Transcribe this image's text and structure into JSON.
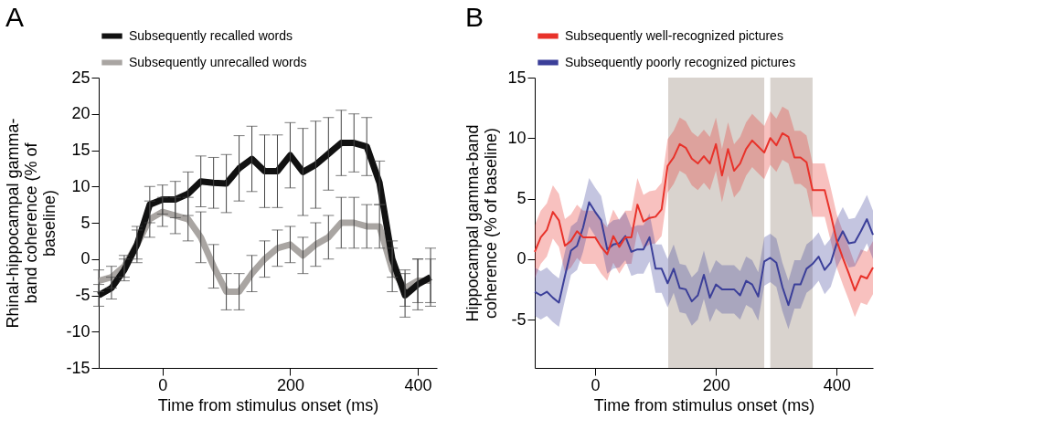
{
  "chart_data": [
    {
      "type": "line",
      "title": "A",
      "xlabel": "Time from stimulus onset (ms)",
      "ylabel": "Rhinal-hippocampal gamma-band coherence (% of baseline)",
      "x": [
        -100,
        -80,
        -60,
        -40,
        -20,
        0,
        20,
        40,
        60,
        80,
        100,
        120,
        140,
        160,
        180,
        200,
        220,
        240,
        260,
        280,
        300,
        320,
        340,
        360,
        380,
        400,
        420
      ],
      "series": [
        {
          "name": "Subsequently recalled words",
          "color": "#111111",
          "values": [
            -5,
            -4,
            -1.5,
            2,
            7.5,
            8.2,
            8.2,
            9,
            10.7,
            10.5,
            10.4,
            12.5,
            13.8,
            12.1,
            12.1,
            14.3,
            12,
            13,
            14.5,
            16,
            16,
            15.5,
            10.5,
            0,
            -5,
            -3.5,
            -2.5
          ],
          "errors": [
            1.5,
            1.5,
            1.5,
            2,
            2.5,
            2,
            2.5,
            3,
            3.5,
            3.5,
            4,
            4.5,
            4.5,
            5,
            5,
            4.5,
            6,
            6,
            5,
            4.5,
            4,
            4,
            3,
            2.5,
            3,
            3.5,
            4
          ]
        },
        {
          "name": "Subsequently unrecalled words",
          "color": "#a9a5a2",
          "values": [
            -3,
            -2.5,
            -1,
            2,
            5.5,
            6.5,
            6,
            5.5,
            3,
            -1,
            -4.5,
            -4.5,
            -2,
            0,
            1.5,
            2,
            0.5,
            2,
            3,
            5,
            5,
            4.5,
            4.5,
            -1.5,
            -4,
            -3,
            -3
          ],
          "errors": [
            1.5,
            1.5,
            1.5,
            2.5,
            2.5,
            2,
            2.5,
            3,
            3.5,
            3,
            2.5,
            2.5,
            2.5,
            2.5,
            2.5,
            2.5,
            2.5,
            3,
            3,
            3.5,
            3.5,
            3,
            3,
            3,
            2.5,
            3,
            3
          ]
        }
      ],
      "xlim": [
        -100,
        430
      ],
      "xticks": [
        0,
        200,
        400
      ],
      "ylim": [
        -15,
        25
      ],
      "yticks": [
        -15,
        -10,
        -5,
        0,
        5,
        10,
        15,
        20,
        25
      ],
      "grid": false,
      "legend": "top",
      "marker": "none",
      "line_style": "solid"
    },
    {
      "type": "line",
      "title": "B",
      "xlabel": "Time from stimulus onset (ms)",
      "ylabel": "Hippocampal gamma-band coherence (% of baseline)",
      "x": [
        -100,
        -90,
        -80,
        -70,
        -60,
        -50,
        -40,
        -30,
        -20,
        -10,
        0,
        10,
        20,
        30,
        40,
        50,
        60,
        70,
        80,
        90,
        100,
        110,
        120,
        130,
        140,
        150,
        160,
        170,
        180,
        190,
        200,
        210,
        220,
        230,
        240,
        250,
        260,
        270,
        280,
        290,
        300,
        310,
        320,
        330,
        340,
        350,
        360,
        370,
        380,
        390,
        400,
        410,
        420,
        430,
        440,
        450,
        460
      ],
      "series": [
        {
          "name": "Subsequently well-recognized pictures",
          "color": "#e8322a",
          "values": [
            0.6,
            1.8,
            2.4,
            3.9,
            3.2,
            1.1,
            1.5,
            2.3,
            1.8,
            1.8,
            1.8,
            1.0,
            0.4,
            1.9,
            1.0,
            1.8,
            1.8,
            4.5,
            3.1,
            3.4,
            3.5,
            4.1,
            7.7,
            8.4,
            9.5,
            9.2,
            8.3,
            7.9,
            8.5,
            7.9,
            9.5,
            6.9,
            9.1,
            7.3,
            7.9,
            9.1,
            9.8,
            9.3,
            8.8,
            10.0,
            9.4,
            10.4,
            10.1,
            8.4,
            8.4,
            8.0,
            5.7,
            5.7,
            5.7,
            3.7,
            1.5,
            0.1,
            -1.2,
            -2.6,
            -1.4,
            -1.6,
            -0.7
          ],
          "lower": [
            -1.6,
            -0.4,
            0.2,
            1.7,
            1.0,
            -1.1,
            -0.7,
            0.1,
            -0.4,
            -0.4,
            -0.4,
            -1.2,
            -1.8,
            -0.3,
            -1.2,
            -0.4,
            -0.4,
            2.3,
            0.9,
            1.2,
            1.3,
            1.9,
            5.5,
            6.2,
            7.3,
            7.0,
            6.1,
            5.7,
            6.3,
            5.7,
            7.3,
            4.7,
            6.9,
            5.1,
            5.7,
            6.9,
            7.6,
            7.1,
            6.6,
            7.8,
            7.2,
            8.2,
            7.9,
            6.2,
            6.2,
            5.8,
            3.5,
            3.5,
            3.5,
            1.5,
            -0.7,
            -2.1,
            -3.4,
            -4.8,
            -3.6,
            -3.8,
            -2.9
          ],
          "upper": [
            2.8,
            4.0,
            4.6,
            6.1,
            5.4,
            3.3,
            3.7,
            4.5,
            4.0,
            4.0,
            4.0,
            3.2,
            2.6,
            4.1,
            3.2,
            4.0,
            4.0,
            6.7,
            5.3,
            5.6,
            5.7,
            6.3,
            9.9,
            10.6,
            11.7,
            11.4,
            10.5,
            10.1,
            10.7,
            10.1,
            11.7,
            9.1,
            11.3,
            9.5,
            10.1,
            11.3,
            12.0,
            11.5,
            11.0,
            12.2,
            11.6,
            12.6,
            12.3,
            10.6,
            10.6,
            10.2,
            7.9,
            7.9,
            7.9,
            5.9,
            3.7,
            2.3,
            1.0,
            -0.4,
            0.8,
            0.6,
            1.5
          ]
        },
        {
          "name": "Subsequently poorly recognized pictures",
          "color": "#3b3f99",
          "values": [
            -2.7,
            -3.0,
            -2.7,
            -3.2,
            -3.6,
            -1.4,
            0.7,
            1.1,
            2.6,
            4.7,
            3.9,
            3.2,
            0.8,
            1.2,
            1.3,
            1.9,
            0.6,
            0.8,
            0.8,
            1.8,
            -0.8,
            -0.8,
            -2.0,
            -0.8,
            -2.4,
            -2.5,
            -3.5,
            -3.0,
            -1.3,
            -3.2,
            -2.1,
            -2.5,
            -2.5,
            -2.5,
            -3.0,
            -1.8,
            -2.1,
            -3.1,
            -0.2,
            0.1,
            -0.3,
            -2.3,
            -3.8,
            -2.1,
            -2.1,
            -0.8,
            -0.4,
            0.2,
            -0.9,
            -0.3,
            1.3,
            2.3,
            1.3,
            1.4,
            2.3,
            3.3,
            2.0
          ],
          "lower": [
            -4.7,
            -5.0,
            -4.7,
            -5.2,
            -5.6,
            -3.4,
            -1.3,
            -0.9,
            0.6,
            2.7,
            1.9,
            1.2,
            -1.2,
            -0.8,
            -0.7,
            -0.1,
            -1.4,
            -1.2,
            -1.2,
            -0.2,
            -2.8,
            -2.8,
            -4.0,
            -2.8,
            -4.4,
            -4.5,
            -5.5,
            -5.0,
            -3.3,
            -5.2,
            -4.1,
            -4.5,
            -4.5,
            -4.5,
            -5.0,
            -3.8,
            -4.1,
            -5.1,
            -2.2,
            -1.9,
            -2.3,
            -4.3,
            -5.8,
            -4.1,
            -4.1,
            -2.8,
            -2.4,
            -1.8,
            -2.9,
            -2.3,
            -0.7,
            0.3,
            -0.7,
            -0.6,
            0.3,
            1.3,
            0.0
          ],
          "upper": [
            -0.7,
            -1.0,
            -0.7,
            -1.2,
            -1.6,
            0.6,
            2.7,
            3.1,
            4.6,
            6.7,
            5.9,
            5.2,
            2.8,
            3.2,
            3.3,
            3.9,
            2.6,
            2.8,
            2.8,
            3.8,
            1.2,
            1.2,
            0.0,
            1.2,
            -0.4,
            -0.5,
            -1.5,
            -1.0,
            0.7,
            -1.2,
            -0.1,
            -0.5,
            -0.5,
            -0.5,
            -1.0,
            0.2,
            -0.1,
            -1.1,
            1.8,
            2.1,
            1.7,
            -0.3,
            -1.8,
            -0.1,
            -0.1,
            1.2,
            1.6,
            2.2,
            1.1,
            1.7,
            3.3,
            4.3,
            3.3,
            3.4,
            4.3,
            5.3,
            4.0
          ]
        }
      ],
      "bands": [
        {
          "axis": "x",
          "from": 121,
          "to": 280,
          "color": "#d9d3ce"
        },
        {
          "axis": "x",
          "from": 290,
          "to": 360,
          "color": "#d9d3ce"
        }
      ],
      "xlim": [
        -100,
        460
      ],
      "xticks": [
        0,
        200,
        400
      ],
      "ylim": [
        -9,
        15
      ],
      "yticks": [
        -5,
        0,
        5,
        10,
        15
      ],
      "grid": false,
      "legend": "top",
      "marker": "none",
      "line_style": "solid"
    }
  ]
}
